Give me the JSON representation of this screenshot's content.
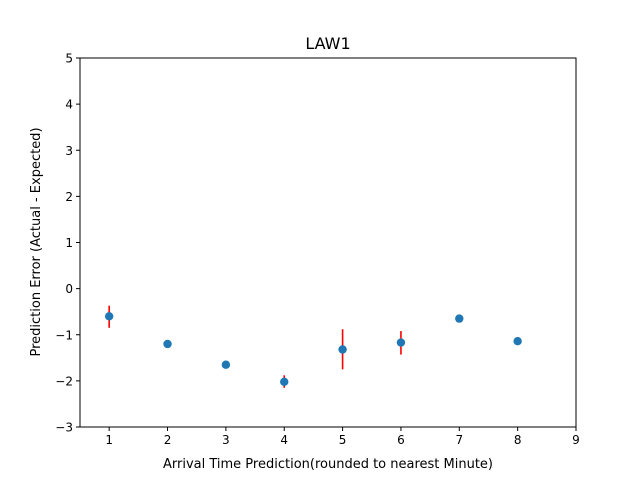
{
  "chart_data": {
    "type": "scatter",
    "title": "LAW1",
    "xlabel": "Arrival Time Prediction(rounded to nearest Minute)",
    "ylabel": "Prediction Error (Actual - Expected)",
    "xlim": [
      0.5,
      9
    ],
    "ylim": [
      -3,
      5
    ],
    "xticks": [
      1,
      2,
      3,
      4,
      5,
      6,
      7,
      8,
      9
    ],
    "yticks": [
      -3,
      -2,
      -1,
      0,
      1,
      2,
      3,
      4,
      5
    ],
    "grid": false,
    "point_color": "#1f77b4",
    "errorbar_color": "#ff0000",
    "points": [
      {
        "x": 1,
        "y": -0.6,
        "err_low": -0.85,
        "err_high": -0.37
      },
      {
        "x": 2,
        "y": -1.2,
        "err_low": -1.24,
        "err_high": -1.15
      },
      {
        "x": 3,
        "y": -1.65,
        "err_low": -1.7,
        "err_high": -1.6
      },
      {
        "x": 4,
        "y": -2.02,
        "err_low": -2.15,
        "err_high": -1.88
      },
      {
        "x": 5,
        "y": -1.32,
        "err_low": -1.75,
        "err_high": -0.88
      },
      {
        "x": 6,
        "y": -1.17,
        "err_low": -1.43,
        "err_high": -0.92
      },
      {
        "x": 7,
        "y": -0.65,
        "err_low": -0.7,
        "err_high": -0.6
      },
      {
        "x": 8,
        "y": -1.14,
        "err_low": -1.22,
        "err_high": -1.05
      }
    ]
  }
}
